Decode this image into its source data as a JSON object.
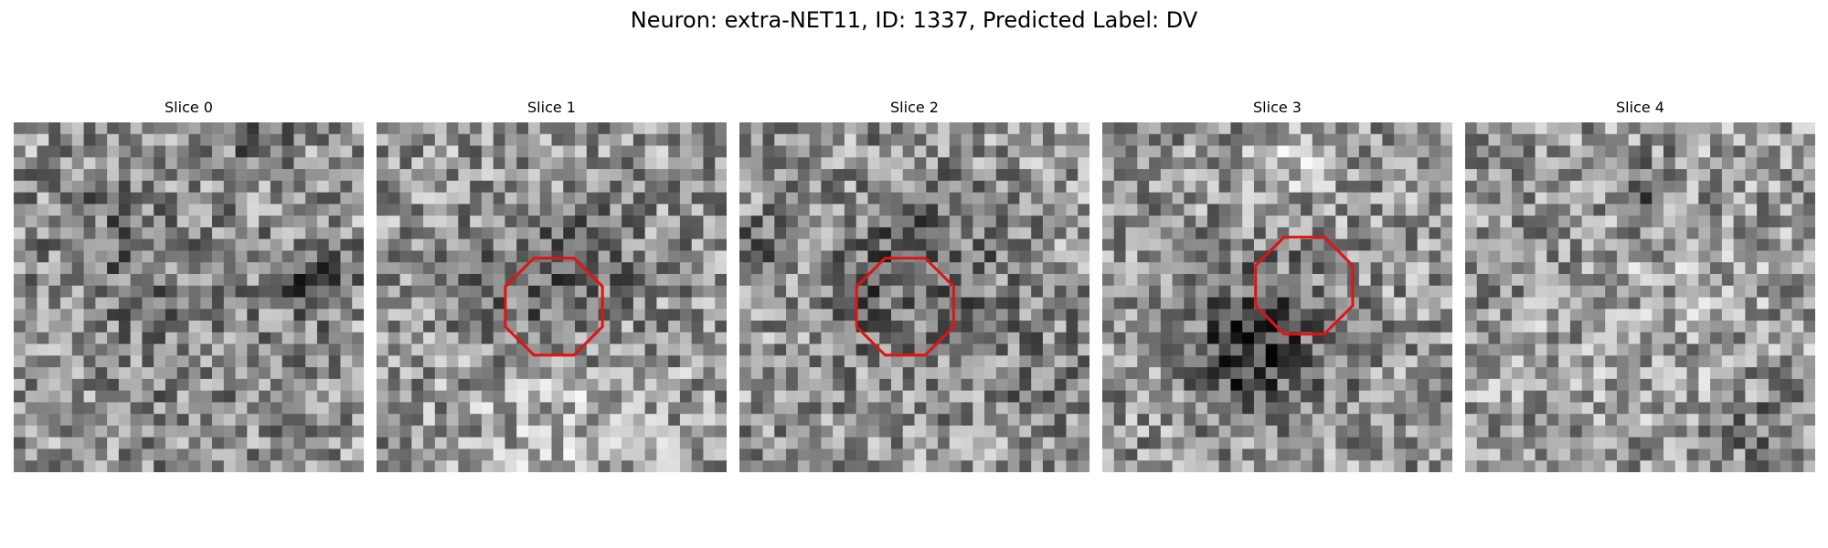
{
  "figure": {
    "title": "Neuron: extra-NET11, ID: 1337, Predicted Label: DV"
  },
  "panels": [
    {
      "title": "Slice 0",
      "has_roi": false,
      "seed": 11,
      "blobs": [
        [
          0.45,
          0.55,
          0.25,
          -25
        ],
        [
          0.85,
          0.45,
          0.08,
          -55
        ],
        [
          0.7,
          0.05,
          0.07,
          -45
        ],
        [
          0.25,
          0.3,
          0.12,
          -25
        ]
      ]
    },
    {
      "title": "Slice 1",
      "has_roi": true,
      "seed": 23,
      "blobs": [
        [
          0.5,
          0.45,
          0.18,
          -55
        ],
        [
          0.55,
          0.85,
          0.2,
          35
        ],
        [
          0.4,
          0.25,
          0.1,
          20
        ]
      ]
    },
    {
      "title": "Slice 2",
      "has_roi": true,
      "seed": 37,
      "blobs": [
        [
          0.5,
          0.45,
          0.17,
          -65
        ],
        [
          0.05,
          0.35,
          0.06,
          -60
        ],
        [
          0.5,
          0.55,
          0.06,
          35
        ],
        [
          0.9,
          0.75,
          0.12,
          -30
        ]
      ]
    },
    {
      "title": "Slice 3",
      "has_roi": true,
      "seed": 53,
      "blobs": [
        [
          0.48,
          0.6,
          0.15,
          -60
        ],
        [
          0.38,
          0.7,
          0.1,
          -50
        ],
        [
          0.55,
          0.1,
          0.06,
          60
        ]
      ]
    },
    {
      "title": "Slice 4",
      "has_roi": false,
      "seed": 71,
      "blobs": [
        [
          0.5,
          0.18,
          0.06,
          -70
        ],
        [
          0.15,
          0.4,
          0.08,
          -30
        ],
        [
          0.85,
          0.9,
          0.08,
          -40
        ],
        [
          0.5,
          0.5,
          0.3,
          15
        ]
      ]
    }
  ],
  "style": {
    "roi_color": "#e01414",
    "colormap": "gray"
  }
}
